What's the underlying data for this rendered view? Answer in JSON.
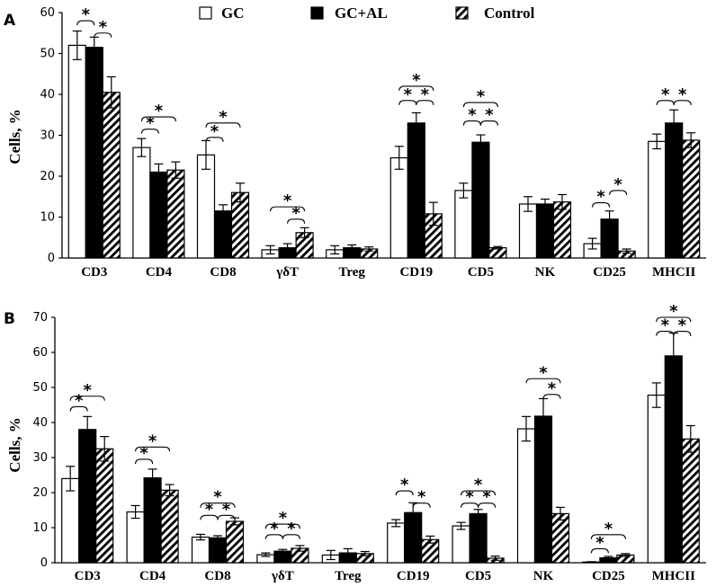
{
  "legend": [
    {
      "name": "GC",
      "fill": "white"
    },
    {
      "name": "GC+AL",
      "fill": "black"
    },
    {
      "name": "Control",
      "fill": "hatch"
    }
  ],
  "chart_data": [
    {
      "type": "bar",
      "panel_label": "A",
      "ylabel": "Cells, %",
      "ylim": [
        0,
        60
      ],
      "yticks": [
        0,
        10,
        20,
        30,
        40,
        50,
        60
      ],
      "categories": [
        "CD3",
        "CD4",
        "CD8",
        "γδT",
        "Treg",
        "CD19",
        "CD5",
        "NK",
        "CD25",
        "MHCII"
      ],
      "series": [
        {
          "name": "GC",
          "values": [
            52,
            27,
            25.2,
            2,
            2,
            24.5,
            16.5,
            13.2,
            3.5,
            28.5
          ],
          "errors": [
            3.5,
            2.2,
            3.5,
            1.0,
            1.0,
            2.8,
            1.8,
            1.8,
            1.3,
            1.8
          ]
        },
        {
          "name": "GC+AL",
          "values": [
            51.5,
            21,
            11.5,
            2.5,
            2.5,
            33,
            28.3,
            13.2,
            9.5,
            33
          ],
          "errors": [
            2.5,
            2.0,
            1.5,
            1.0,
            0.7,
            2.5,
            1.8,
            1.2,
            2.0,
            3.2
          ]
        },
        {
          "name": "Control",
          "values": [
            40.5,
            21.5,
            16,
            6.2,
            2.2,
            10.8,
            2.5,
            13.7,
            1.7,
            28.8
          ],
          "errors": [
            3.8,
            2.0,
            2.3,
            1.2,
            0.5,
            2.8,
            0.3,
            1.8,
            0.5,
            1.8
          ]
        }
      ],
      "significance": [
        {
          "cat": 0,
          "from": 0,
          "to": 1,
          "y": 58,
          "label": "*"
        },
        {
          "cat": 0,
          "from": 1,
          "to": 2,
          "y": 55,
          "label": "*"
        },
        {
          "cat": 1,
          "from": 0,
          "to": 1,
          "y": 31.5,
          "label": "*"
        },
        {
          "cat": 1,
          "from": 0,
          "to": 2,
          "y": 34.5,
          "label": "*"
        },
        {
          "cat": 2,
          "from": 0,
          "to": 1,
          "y": 29.5,
          "label": "*"
        },
        {
          "cat": 2,
          "from": 0,
          "to": 2,
          "y": 33,
          "label": "*"
        },
        {
          "cat": 3,
          "from": 0,
          "to": 2,
          "y": 12.5,
          "label": "*"
        },
        {
          "cat": 3,
          "from": 1,
          "to": 2,
          "y": 9.5,
          "label": "*"
        },
        {
          "cat": 5,
          "from": 0,
          "to": 1,
          "y": 38.5,
          "label": "*"
        },
        {
          "cat": 5,
          "from": 0,
          "to": 2,
          "y": 42,
          "label": "*"
        },
        {
          "cat": 5,
          "from": 1,
          "to": 2,
          "y": 38.5,
          "label": "*"
        },
        {
          "cat": 6,
          "from": 0,
          "to": 1,
          "y": 33.5,
          "label": "*"
        },
        {
          "cat": 6,
          "from": 0,
          "to": 2,
          "y": 38,
          "label": "*"
        },
        {
          "cat": 6,
          "from": 1,
          "to": 2,
          "y": 33.5,
          "label": "*"
        },
        {
          "cat": 8,
          "from": 0,
          "to": 1,
          "y": 13.5,
          "label": "*"
        },
        {
          "cat": 8,
          "from": 1,
          "to": 2,
          "y": 16.5,
          "label": "*"
        },
        {
          "cat": 9,
          "from": 0,
          "to": 1,
          "y": 38.5,
          "label": "*"
        },
        {
          "cat": 9,
          "from": 1,
          "to": 2,
          "y": 38.5,
          "label": "*"
        }
      ]
    },
    {
      "type": "bar",
      "panel_label": "B",
      "ylabel": "Cells, %",
      "ylim": [
        0,
        70
      ],
      "yticks": [
        0,
        10,
        20,
        30,
        40,
        50,
        60,
        70
      ],
      "categories": [
        "CD3",
        "CD4",
        "CD8",
        "γδT",
        "Treg",
        "CD19",
        "CD5",
        "NK",
        "CD25",
        "MHCII"
      ],
      "series": [
        {
          "name": "GC",
          "values": [
            24,
            14.5,
            7.3,
            2.3,
            2.2,
            11.3,
            10.5,
            38.2,
            0.2,
            47.8
          ],
          "errors": [
            3.5,
            1.8,
            0.8,
            0.5,
            1.3,
            1.0,
            1.0,
            3.5,
            0.1,
            3.5
          ]
        },
        {
          "name": "GC+AL",
          "values": [
            38,
            24.2,
            7.1,
            3.3,
            2.8,
            14.3,
            14,
            41.8,
            1.4,
            59
          ],
          "errors": [
            3.7,
            2.5,
            0.6,
            0.5,
            1.2,
            2.8,
            1.2,
            5.0,
            0.4,
            6.5
          ]
        },
        {
          "name": "Control",
          "values": [
            32.5,
            20.7,
            11.8,
            4.1,
            2.6,
            6.6,
            1.3,
            14,
            2.2,
            35.3
          ],
          "errors": [
            3.5,
            1.6,
            1.0,
            0.8,
            0.6,
            1.0,
            0.6,
            1.8,
            0.4,
            3.8
          ]
        }
      ],
      "significance": [
        {
          "cat": 0,
          "from": 0,
          "to": 1,
          "y": 44.5,
          "label": "*"
        },
        {
          "cat": 0,
          "from": 0,
          "to": 2,
          "y": 47.5,
          "label": "*"
        },
        {
          "cat": 1,
          "from": 0,
          "to": 1,
          "y": 29.5,
          "label": "*"
        },
        {
          "cat": 1,
          "from": 0,
          "to": 2,
          "y": 33,
          "label": "*"
        },
        {
          "cat": 2,
          "from": 0,
          "to": 1,
          "y": 13.5,
          "label": "*"
        },
        {
          "cat": 2,
          "from": 0,
          "to": 2,
          "y": 17,
          "label": "*"
        },
        {
          "cat": 2,
          "from": 1,
          "to": 2,
          "y": 13.5,
          "label": "*"
        },
        {
          "cat": 3,
          "from": 0,
          "to": 1,
          "y": 8,
          "label": "*"
        },
        {
          "cat": 3,
          "from": 0,
          "to": 2,
          "y": 11,
          "label": "*"
        },
        {
          "cat": 3,
          "from": 1,
          "to": 2,
          "y": 8,
          "label": "*"
        },
        {
          "cat": 5,
          "from": 0,
          "to": 1,
          "y": 20.5,
          "label": "*"
        },
        {
          "cat": 5,
          "from": 1,
          "to": 2,
          "y": 17,
          "label": "*"
        },
        {
          "cat": 6,
          "from": 0,
          "to": 1,
          "y": 17,
          "label": "*"
        },
        {
          "cat": 6,
          "from": 0,
          "to": 2,
          "y": 20.5,
          "label": "*"
        },
        {
          "cat": 6,
          "from": 1,
          "to": 2,
          "y": 17,
          "label": "*"
        },
        {
          "cat": 7,
          "from": 0,
          "to": 2,
          "y": 52.5,
          "label": "*"
        },
        {
          "cat": 7,
          "from": 1,
          "to": 2,
          "y": 48,
          "label": "*"
        },
        {
          "cat": 8,
          "from": 0,
          "to": 1,
          "y": 4,
          "label": "*"
        },
        {
          "cat": 8,
          "from": 0,
          "to": 2,
          "y": 8,
          "label": "*"
        },
        {
          "cat": 9,
          "from": 0,
          "to": 1,
          "y": 66,
          "label": "*"
        },
        {
          "cat": 9,
          "from": 0,
          "to": 2,
          "y": 70,
          "label": "*"
        },
        {
          "cat": 9,
          "from": 1,
          "to": 2,
          "y": 66,
          "label": "*"
        }
      ]
    }
  ]
}
